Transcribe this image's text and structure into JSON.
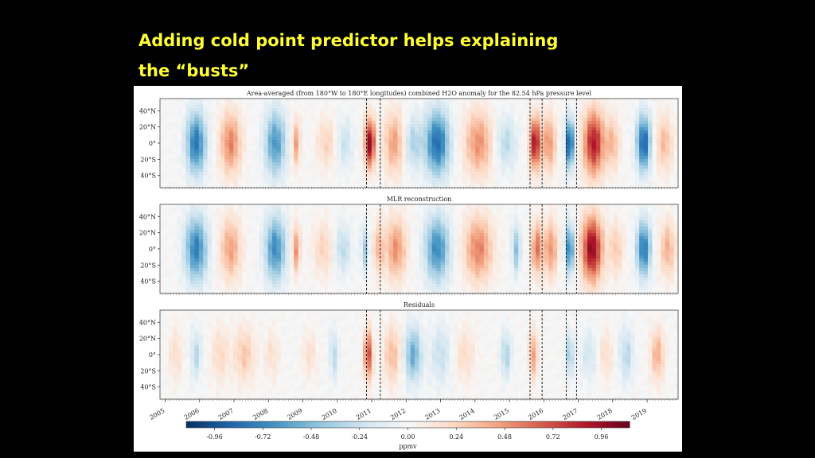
{
  "slide": {
    "title_line1": "Adding cold point predictor helps explaining",
    "title_line2": "the “busts”"
  },
  "chart_data": {
    "type": "heatmap",
    "panels": [
      {
        "title": "Area-averaged (from 180°W to 180°E longitudes) combined H2O anomaly for the 82.54 hPa pressure level"
      },
      {
        "title": "MLR reconstruction"
      },
      {
        "title": "Residuals"
      }
    ],
    "y_tick_labels": [
      "40°N",
      "20°N",
      "0°",
      "20°S",
      "40°S"
    ],
    "y_ticks": [
      40,
      20,
      0,
      -20,
      -40
    ],
    "ylim": [
      -55,
      55
    ],
    "x_tick_labels": [
      "2005",
      "2006",
      "2007",
      "2008",
      "2009",
      "2010",
      "2011",
      "2012",
      "2013",
      "2014",
      "2015",
      "2016",
      "2017",
      "2018",
      "2019"
    ],
    "xlim": [
      2004.85,
      2019.9
    ],
    "event_lines": [
      2010.85,
      2011.25,
      2015.6,
      2015.95,
      2016.65,
      2016.95
    ],
    "colorbar": {
      "label": "ppmv",
      "ticks": [
        -0.96,
        -0.72,
        -0.48,
        -0.24,
        0.0,
        0.24,
        0.48,
        0.72,
        0.96
      ],
      "tick_labels": [
        "-0.96",
        "-0.72",
        "-0.48",
        "-0.24",
        "0.00",
        "0.24",
        "0.48",
        "0.72",
        "0.96"
      ],
      "range": [
        -1.1,
        1.1
      ],
      "colormap": "RdBu_r"
    },
    "features": {
      "anomaly": [
        {
          "t": 2005.9,
          "v": -0.8,
          "w": 0.28,
          "s": 38
        },
        {
          "t": 2006.9,
          "v": 0.55,
          "w": 0.3,
          "s": 38
        },
        {
          "t": 2008.2,
          "v": -0.65,
          "w": 0.3,
          "s": 40
        },
        {
          "t": 2008.8,
          "v": 0.45,
          "w": 0.12,
          "s": 30
        },
        {
          "t": 2009.7,
          "v": 0.25,
          "w": 0.3,
          "s": 30
        },
        {
          "t": 2010.2,
          "v": -0.25,
          "w": 0.25,
          "s": 30
        },
        {
          "t": 2010.95,
          "v": 1.0,
          "w": 0.15,
          "s": 30
        },
        {
          "t": 2011.65,
          "v": 0.45,
          "w": 0.3,
          "s": 38
        },
        {
          "t": 2012.2,
          "v": -0.35,
          "w": 0.25,
          "s": 32
        },
        {
          "t": 2012.9,
          "v": -0.85,
          "w": 0.35,
          "s": 40
        },
        {
          "t": 2014.1,
          "v": 0.5,
          "w": 0.4,
          "s": 40
        },
        {
          "t": 2014.9,
          "v": -0.3,
          "w": 0.3,
          "s": 32
        },
        {
          "t": 2015.75,
          "v": 0.95,
          "w": 0.15,
          "s": 32
        },
        {
          "t": 2016.15,
          "v": 0.5,
          "w": 0.2,
          "s": 35
        },
        {
          "t": 2016.75,
          "v": -1.0,
          "w": 0.12,
          "s": 30
        },
        {
          "t": 2017.45,
          "v": 0.9,
          "w": 0.3,
          "s": 40
        },
        {
          "t": 2018.0,
          "v": 0.35,
          "w": 0.2,
          "s": 32
        },
        {
          "t": 2018.9,
          "v": -0.9,
          "w": 0.2,
          "s": 34
        },
        {
          "t": 2019.5,
          "v": 0.35,
          "w": 0.25,
          "s": 34
        }
      ],
      "mlr": [
        {
          "t": 2005.9,
          "v": -0.75,
          "w": 0.32,
          "s": 40
        },
        {
          "t": 2006.9,
          "v": 0.45,
          "w": 0.3,
          "s": 38
        },
        {
          "t": 2008.2,
          "v": -0.7,
          "w": 0.3,
          "s": 40
        },
        {
          "t": 2008.8,
          "v": 0.5,
          "w": 0.12,
          "s": 30
        },
        {
          "t": 2009.6,
          "v": 0.25,
          "w": 0.3,
          "s": 32
        },
        {
          "t": 2010.15,
          "v": -0.3,
          "w": 0.25,
          "s": 30
        },
        {
          "t": 2010.8,
          "v": -0.4,
          "w": 0.1,
          "s": 28
        },
        {
          "t": 2011.2,
          "v": 0.35,
          "w": 0.15,
          "s": 32
        },
        {
          "t": 2011.7,
          "v": 0.5,
          "w": 0.3,
          "s": 38
        },
        {
          "t": 2012.9,
          "v": -0.7,
          "w": 0.35,
          "s": 40
        },
        {
          "t": 2014.1,
          "v": 0.55,
          "w": 0.4,
          "s": 40
        },
        {
          "t": 2015.2,
          "v": -0.45,
          "w": 0.12,
          "s": 30
        },
        {
          "t": 2015.8,
          "v": 0.6,
          "w": 0.15,
          "s": 32
        },
        {
          "t": 2016.2,
          "v": 0.5,
          "w": 0.2,
          "s": 35
        },
        {
          "t": 2016.75,
          "v": -0.8,
          "w": 0.12,
          "s": 30
        },
        {
          "t": 2017.4,
          "v": 1.0,
          "w": 0.3,
          "s": 40
        },
        {
          "t": 2018.1,
          "v": 0.3,
          "w": 0.2,
          "s": 32
        },
        {
          "t": 2018.9,
          "v": -0.8,
          "w": 0.2,
          "s": 34
        },
        {
          "t": 2019.6,
          "v": 0.4,
          "w": 0.22,
          "s": 34
        }
      ],
      "residuals": [
        {
          "t": 2005.3,
          "v": 0.2,
          "w": 0.2,
          "s": 32
        },
        {
          "t": 2005.9,
          "v": -0.3,
          "w": 0.15,
          "s": 30
        },
        {
          "t": 2006.6,
          "v": 0.22,
          "w": 0.25,
          "s": 34
        },
        {
          "t": 2007.3,
          "v": 0.3,
          "w": 0.3,
          "s": 34
        },
        {
          "t": 2008.1,
          "v": 0.18,
          "w": 0.2,
          "s": 30
        },
        {
          "t": 2009.2,
          "v": 0.18,
          "w": 0.2,
          "s": 28
        },
        {
          "t": 2009.9,
          "v": -0.3,
          "w": 0.12,
          "s": 30
        },
        {
          "t": 2010.9,
          "v": 0.75,
          "w": 0.12,
          "s": 30
        },
        {
          "t": 2011.6,
          "v": 0.35,
          "w": 0.25,
          "s": 36
        },
        {
          "t": 2012.2,
          "v": -0.55,
          "w": 0.25,
          "s": 34
        },
        {
          "t": 2013.0,
          "v": -0.25,
          "w": 0.3,
          "s": 36
        },
        {
          "t": 2013.7,
          "v": 0.2,
          "w": 0.3,
          "s": 32
        },
        {
          "t": 2014.9,
          "v": -0.35,
          "w": 0.15,
          "s": 28
        },
        {
          "t": 2015.7,
          "v": 0.45,
          "w": 0.12,
          "s": 30
        },
        {
          "t": 2016.75,
          "v": -0.45,
          "w": 0.1,
          "s": 26
        },
        {
          "t": 2017.3,
          "v": -0.2,
          "w": 0.25,
          "s": 30
        },
        {
          "t": 2017.8,
          "v": 0.2,
          "w": 0.2,
          "s": 30
        },
        {
          "t": 2018.4,
          "v": -0.3,
          "w": 0.2,
          "s": 34
        },
        {
          "t": 2019.3,
          "v": 0.4,
          "w": 0.2,
          "s": 32
        }
      ]
    },
    "grid": false
  }
}
